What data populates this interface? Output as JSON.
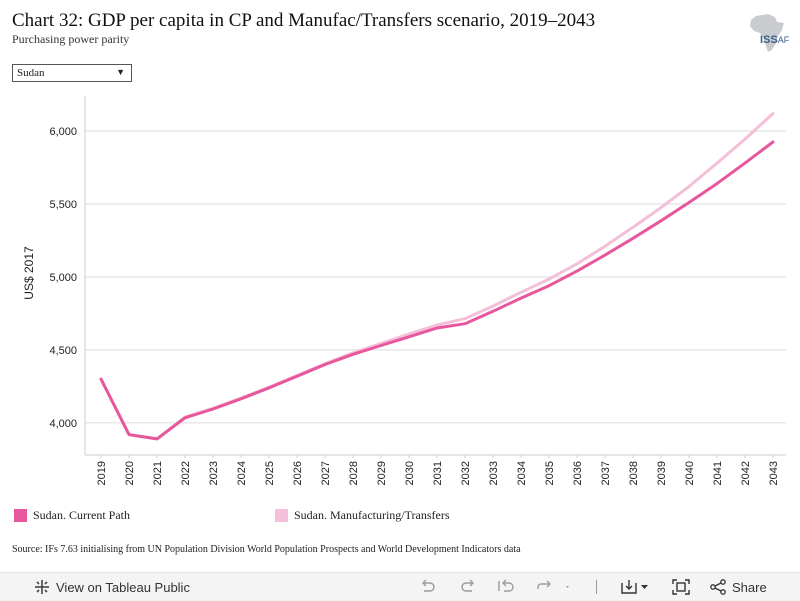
{
  "header": {
    "title": "Chart 32: GDP per capita in CP and Manufac/Transfers scenario, 2019–2043",
    "subtitle": "Purchasing power parity"
  },
  "logo": {
    "text": "ISS",
    "suffix": "AF",
    "icon": "africa-map-logo"
  },
  "filter": {
    "selected": "Sudan",
    "icon": "chevron-down-icon"
  },
  "chart_data": {
    "type": "line",
    "x": [
      "2019",
      "2020",
      "2021",
      "2022",
      "2023",
      "2024",
      "2025",
      "2026",
      "2027",
      "2028",
      "2029",
      "2030",
      "2031",
      "2032",
      "2033",
      "2034",
      "2035",
      "2036",
      "2037",
      "2038",
      "2039",
      "2040",
      "2041",
      "2042",
      "2043"
    ],
    "ylabel": "US$ 2017",
    "ylim": [
      3780,
      6240
    ],
    "yticks": [
      4000,
      4500,
      5000,
      5500,
      6000
    ],
    "ytick_labels": [
      "4,000",
      "4,500",
      "5,000",
      "5,500",
      "6,000"
    ],
    "grid": true,
    "legend_position": "bottom",
    "series": [
      {
        "name": "Sudan. Manufacturing/Transfers",
        "color": "#f4bfd8",
        "values": [
          4300,
          3920,
          3890,
          4040,
          4100,
          4170,
          4245,
          4325,
          4405,
          4480,
          4545,
          4610,
          4670,
          4715,
          4800,
          4895,
          4985,
          5090,
          5210,
          5340,
          5475,
          5620,
          5780,
          5945,
          6120
        ]
      },
      {
        "name": "Sudan. Current Path",
        "color": "#e8579d",
        "values": [
          4300,
          3920,
          3890,
          4035,
          4095,
          4165,
          4240,
          4320,
          4400,
          4470,
          4530,
          4590,
          4650,
          4680,
          4765,
          4855,
          4940,
          5040,
          5150,
          5265,
          5385,
          5510,
          5640,
          5780,
          5925
        ]
      }
    ]
  },
  "legend": [
    {
      "label": "Sudan. Current Path",
      "color": "#e8579d"
    },
    {
      "label": "Sudan. Manufacturing/Transfers",
      "color": "#f4bfd8"
    }
  ],
  "source": "Source: IFs 7.63 initialising from UN Population Division World Population Prospects and World Development Indicators data",
  "toolbar": {
    "view_label": "View on Tableau Public",
    "share_label": "Share",
    "icons": [
      "tableau-logo-icon",
      "undo-icon",
      "redo-icon",
      "revert-icon",
      "refresh-icon",
      "download-icon",
      "fullscreen-icon",
      "share-icon"
    ]
  }
}
